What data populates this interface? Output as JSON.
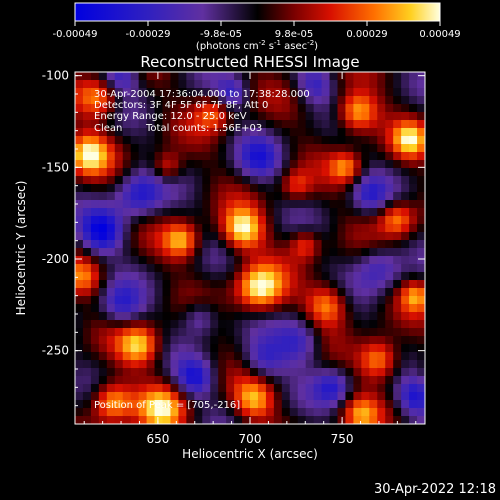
{
  "chart_data": {
    "type": "heatmap",
    "title": "Reconstructed RHESSI Image",
    "xlabel": "Heliocentric X (arcsec)",
    "ylabel": "Heliocentric Y (arcsec)",
    "xlim": [
      605,
      795
    ],
    "ylim": [
      -290,
      -98
    ],
    "x_ticks": [
      650,
      700,
      750
    ],
    "y_ticks": [
      -100,
      -150,
      -200,
      -250
    ],
    "colorbar": {
      "ticks": [
        "-0.00049",
        "-0.00029",
        "-9.8e-05",
        "9.8e-05",
        "0.00029",
        "0.00049"
      ],
      "units_text": "(photons cm",
      "units_sup1": "-2",
      "units_mid": " s",
      "units_sup2": "-1",
      "units_mid2": " asec",
      "units_sup3": "-2",
      "units_end": ")",
      "range": [
        -0.00049,
        0.00049
      ]
    },
    "annotations": {
      "time_range": "30-Apr-2004 17:36:04.000 to 17:38:28.000",
      "detectors": "Detectors: 3F 4F 5F 6F 7F 8F, Att 0",
      "energy": "Energy Range: 12.0 - 25.0 keV",
      "method": "Clean",
      "counts": "Total counts: 1.56E+03",
      "peak": "Position of Peak = [705,-216]"
    },
    "peak_position": [
      705,
      -216
    ],
    "blobs": [
      {
        "x": 705,
        "y": -216,
        "a": 1.0,
        "s": 9
      },
      {
        "x": 696,
        "y": -184,
        "a": 0.95,
        "s": 8
      },
      {
        "x": 612,
        "y": -143,
        "a": 0.9,
        "s": 8
      },
      {
        "x": 618,
        "y": -112,
        "a": 0.7,
        "s": 8
      },
      {
        "x": 663,
        "y": -190,
        "a": 0.75,
        "s": 7
      },
      {
        "x": 640,
        "y": -247,
        "a": 0.8,
        "s": 8
      },
      {
        "x": 625,
        "y": -278,
        "a": 0.85,
        "s": 8
      },
      {
        "x": 652,
        "y": -282,
        "a": 0.75,
        "s": 9
      },
      {
        "x": 702,
        "y": -277,
        "a": 0.7,
        "s": 8
      },
      {
        "x": 770,
        "y": -255,
        "a": 0.85,
        "s": 8
      },
      {
        "x": 780,
        "y": -178,
        "a": 0.7,
        "s": 7
      },
      {
        "x": 758,
        "y": -120,
        "a": 0.9,
        "s": 8
      },
      {
        "x": 787,
        "y": -135,
        "a": 0.75,
        "s": 7
      },
      {
        "x": 752,
        "y": -150,
        "a": 0.6,
        "s": 6
      },
      {
        "x": 742,
        "y": -225,
        "a": 0.75,
        "s": 8
      },
      {
        "x": 680,
        "y": -120,
        "a": 0.55,
        "s": 7
      },
      {
        "x": 655,
        "y": -150,
        "a": 0.55,
        "s": 6
      },
      {
        "x": 730,
        "y": -192,
        "a": 0.55,
        "s": 6
      },
      {
        "x": 790,
        "y": -220,
        "a": 0.6,
        "s": 6
      },
      {
        "x": 610,
        "y": -210,
        "a": 0.5,
        "s": 7
      },
      {
        "x": 725,
        "y": -160,
        "a": 0.45,
        "s": 6
      },
      {
        "x": 760,
        "y": -285,
        "a": 0.55,
        "s": 7
      },
      {
        "x": 630,
        "y": -100,
        "a": -0.6,
        "s": 7
      },
      {
        "x": 640,
        "y": -165,
        "a": -0.7,
        "s": 9
      },
      {
        "x": 620,
        "y": -185,
        "a": -0.85,
        "s": 8
      },
      {
        "x": 630,
        "y": -225,
        "a": -0.55,
        "s": 8
      },
      {
        "x": 673,
        "y": -232,
        "a": -0.5,
        "s": 7
      },
      {
        "x": 705,
        "y": -145,
        "a": -0.55,
        "s": 8
      },
      {
        "x": 727,
        "y": -245,
        "a": -0.6,
        "s": 9
      },
      {
        "x": 707,
        "y": -255,
        "a": -0.55,
        "s": 8
      },
      {
        "x": 770,
        "y": -205,
        "a": -0.55,
        "s": 9
      },
      {
        "x": 765,
        "y": -165,
        "a": -0.5,
        "s": 7
      },
      {
        "x": 790,
        "y": -275,
        "a": -0.7,
        "s": 7
      },
      {
        "x": 745,
        "y": -270,
        "a": -0.6,
        "s": 7
      },
      {
        "x": 670,
        "y": -265,
        "a": -0.7,
        "s": 7
      },
      {
        "x": 690,
        "y": -110,
        "a": -0.5,
        "s": 6
      },
      {
        "x": 735,
        "y": -105,
        "a": -0.5,
        "s": 7
      }
    ]
  },
  "footer": {
    "timestamp": "30-Apr-2022 12:18"
  }
}
